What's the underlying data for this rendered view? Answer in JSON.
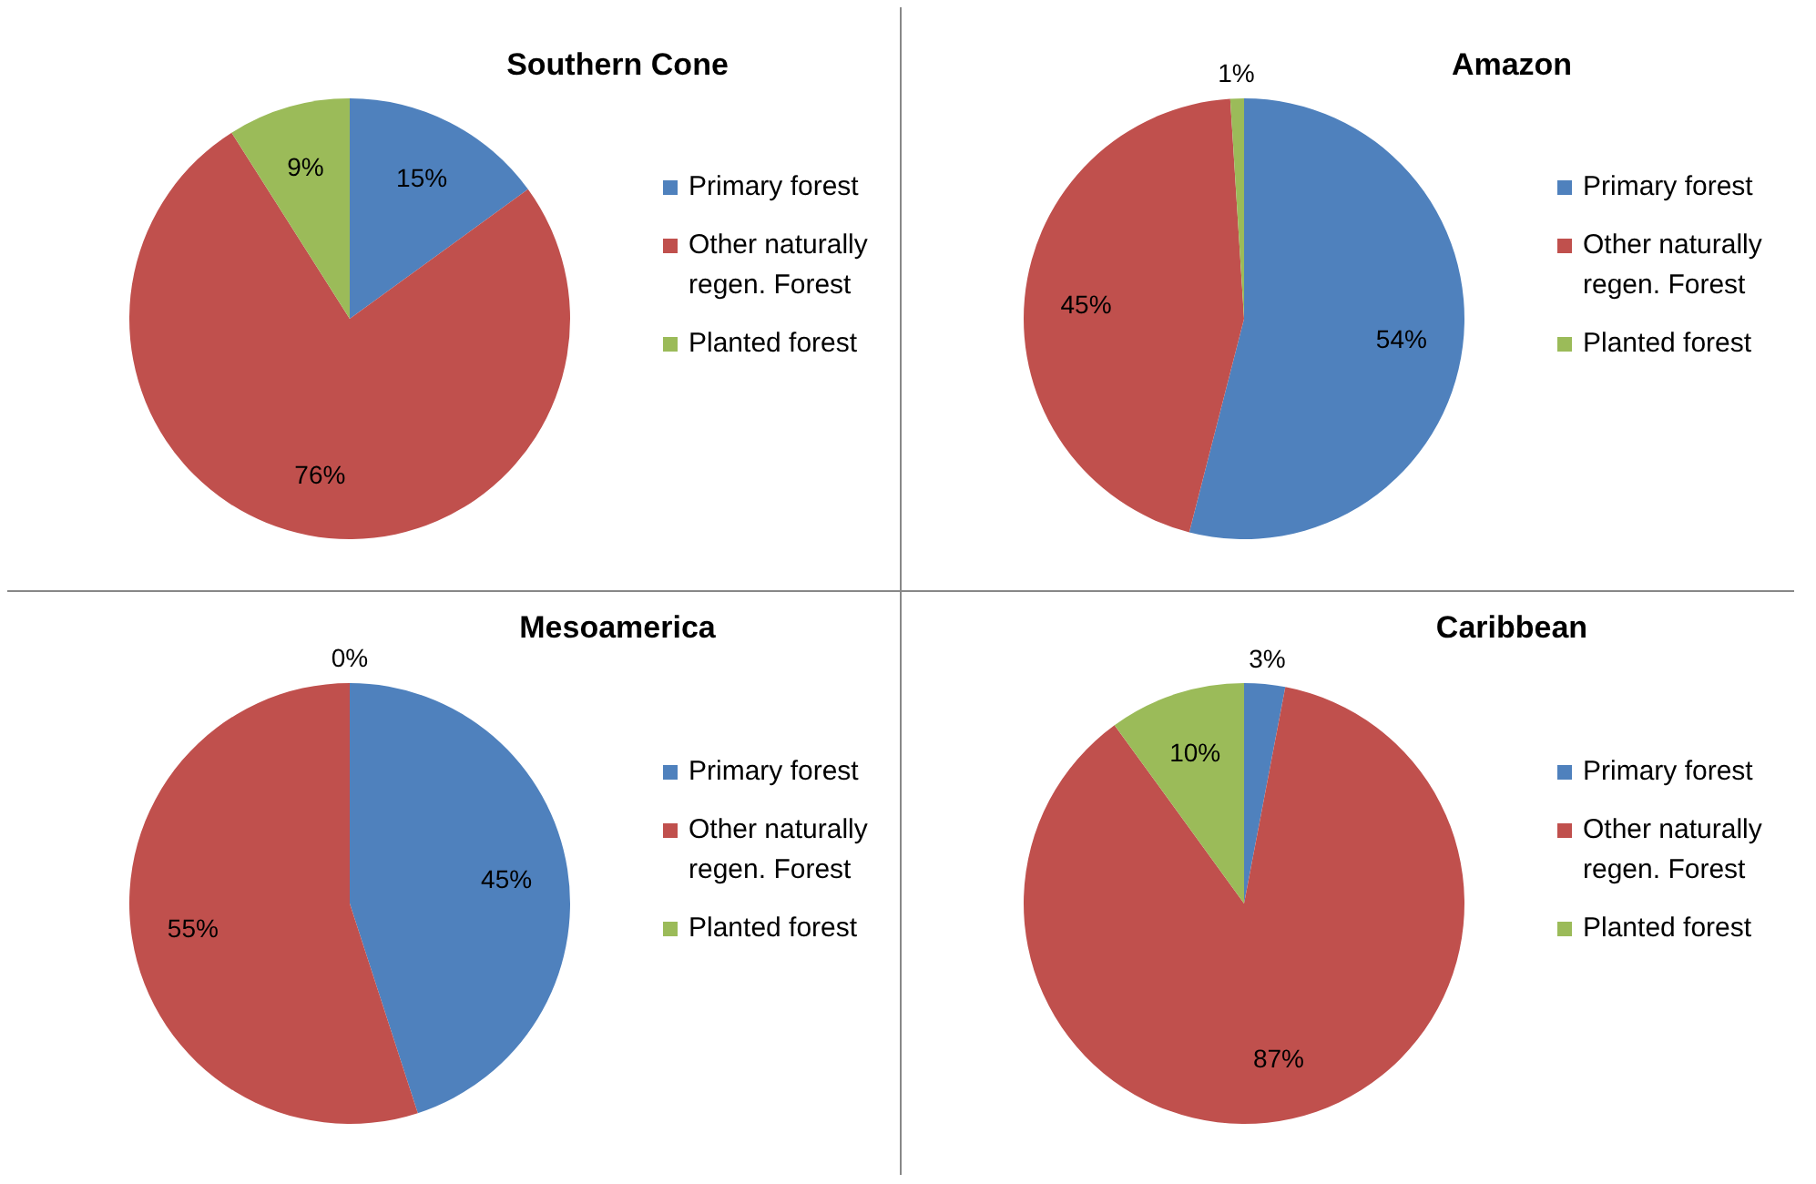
{
  "chart_data": [
    {
      "type": "pie",
      "title": "Southern Cone",
      "categories": [
        "Primary forest",
        "Other naturally regen. Forest",
        "Planted forest"
      ],
      "values": [
        15,
        76,
        9
      ],
      "value_labels": [
        "15%",
        "76%",
        "9%"
      ],
      "colors": [
        "#4f81bd",
        "#c0504d",
        "#9bbb59"
      ],
      "legend": "right"
    },
    {
      "type": "pie",
      "title": "Amazon",
      "categories": [
        "Primary forest",
        "Other naturally regen. Forest",
        "Planted forest"
      ],
      "values": [
        54,
        45,
        1
      ],
      "value_labels": [
        "54%",
        "45%",
        "1%"
      ],
      "colors": [
        "#4f81bd",
        "#c0504d",
        "#9bbb59"
      ],
      "legend": "right"
    },
    {
      "type": "pie",
      "title": "Mesoamerica",
      "categories": [
        "Primary forest",
        "Other naturally regen. Forest",
        "Planted forest"
      ],
      "values": [
        45,
        55,
        0
      ],
      "value_labels": [
        "45%",
        "55%",
        "0%"
      ],
      "colors": [
        "#4f81bd",
        "#c0504d",
        "#9bbb59"
      ],
      "legend": "right"
    },
    {
      "type": "pie",
      "title": "Caribbean",
      "categories": [
        "Primary forest",
        "Other naturally regen. Forest",
        "Planted forest"
      ],
      "values": [
        3,
        87,
        10
      ],
      "value_labels": [
        "3%",
        "87%",
        "10%"
      ],
      "colors": [
        "#4f81bd",
        "#c0504d",
        "#9bbb59"
      ],
      "legend": "right"
    }
  ]
}
